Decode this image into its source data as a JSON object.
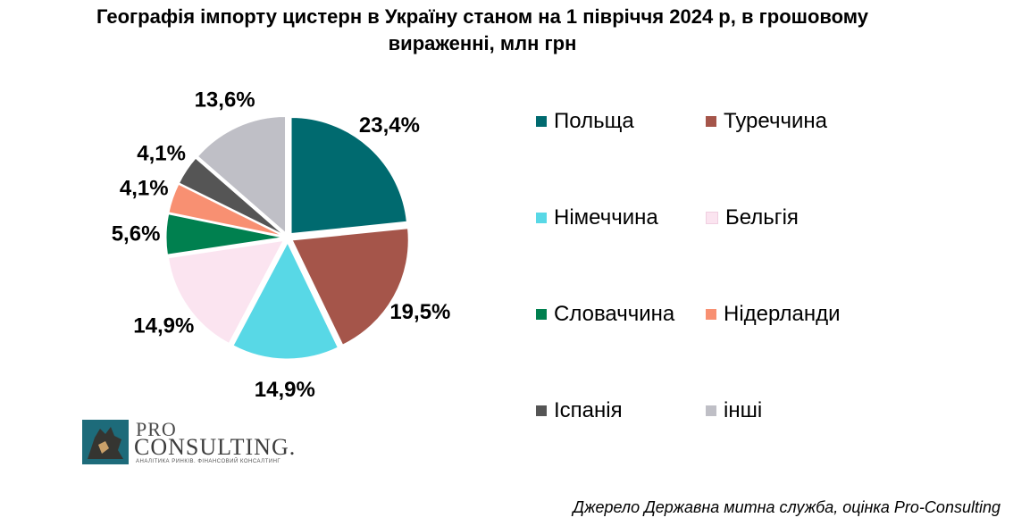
{
  "chart_data": {
    "type": "pie",
    "title": "Географія імпорту цистерн в Україну станом на 1 півріччя 2024 р, в грошовому вираженні, млн грн",
    "title_lines": [
      "Географія імпорту цистерн в Україну станом на 1 півріччя 2024 р, в грошовому",
      "вираженні, млн грн"
    ],
    "legend_position": "right",
    "slices": [
      {
        "name": "Польща",
        "value": 23.4,
        "label": "23,4%",
        "color": "#006a6f"
      },
      {
        "name": "Туреччина",
        "value": 19.5,
        "label": "19,5%",
        "color": "#a5554a"
      },
      {
        "name": "Німеччина",
        "value": 14.9,
        "label": "14,9%",
        "color": "#58d8e6"
      },
      {
        "name": "Бельгія",
        "value": 14.9,
        "label": "14,9%",
        "color": "#fbe4f0"
      },
      {
        "name": "Словаччина",
        "value": 5.6,
        "label": "5,6%",
        "color": "#00804f"
      },
      {
        "name": "Нідерланди",
        "value": 4.1,
        "label": "4,1%",
        "color": "#f89072"
      },
      {
        "name": "Іспанія",
        "value": 4.1,
        "label": "4,1%",
        "color": "#555555"
      },
      {
        "name": "інші",
        "value": 13.6,
        "label": "13,6%",
        "color": "#bfbfc6"
      }
    ]
  },
  "logo": {
    "line1": "PRO",
    "line2": "CONSULTING.",
    "tagline": "АНАЛІТИКА РИНКІВ. ФІНАНСОВИЙ КОНСАЛТИНГ"
  },
  "source": "Джерело Державна митна служба, оцінка Pro-Consulting"
}
